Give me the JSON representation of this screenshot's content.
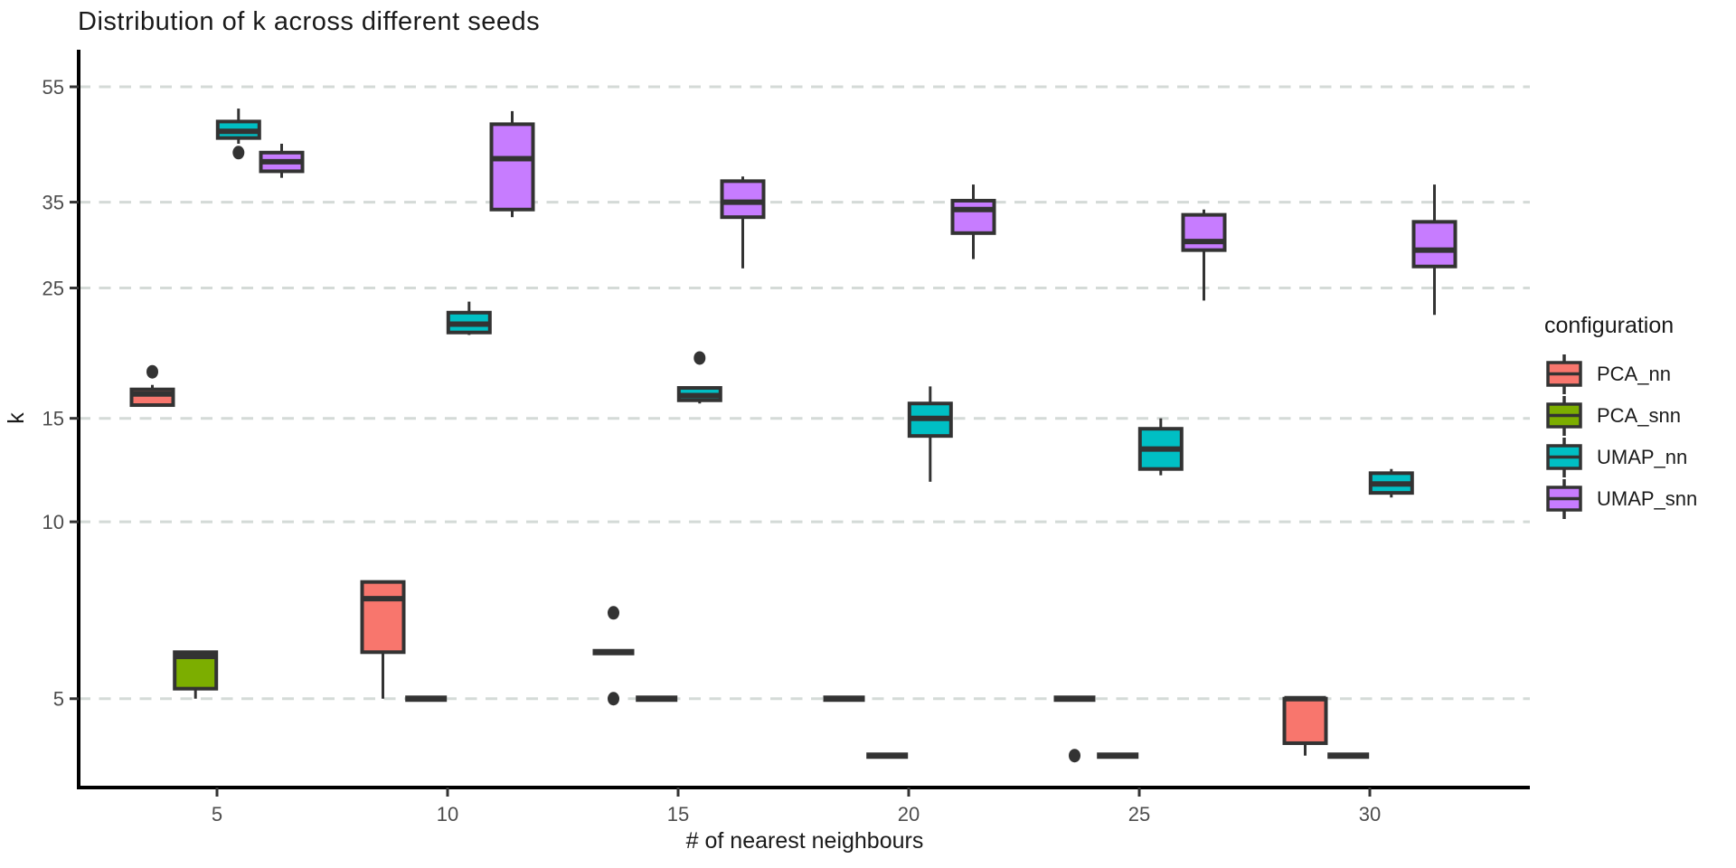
{
  "chart_data": {
    "type": "boxplot",
    "title": "Distribution of k across different seeds",
    "xlabel": "# of nearest neighbours",
    "ylabel": "k",
    "x_groups": [
      5,
      10,
      15,
      20,
      25,
      30
    ],
    "y_ticks": [
      5,
      10,
      15,
      25,
      35,
      55
    ],
    "y_scale": "log10",
    "ylim": [
      3.53,
      63.6
    ],
    "grid": "dashed-horizontal",
    "legend": {
      "title": "configuration",
      "position": "right"
    },
    "style": {
      "grid_color": "#d4dad7",
      "box_ink": "#333333",
      "axis_color": "#000000",
      "tick_label_color": "#4d4d4d"
    },
    "series": [
      {
        "name": "PCA_nn",
        "color": "#F8766D",
        "boxes": [
          {
            "x": 5,
            "low": 15.8,
            "q1": 15.8,
            "median": 16.5,
            "q3": 16.8,
            "high": 17.1,
            "outliers": [
              18
            ]
          },
          {
            "x": 10,
            "low": 5,
            "q1": 6,
            "median": 7.4,
            "q3": 7.9,
            "high": 7.9,
            "outliers": []
          },
          {
            "x": 15,
            "low": 6,
            "q1": 6,
            "median": 6,
            "q3": 6,
            "high": 6,
            "outliers": [
              7,
              5
            ]
          },
          {
            "x": 20,
            "low": 5,
            "q1": 5,
            "median": 5,
            "q3": 5,
            "high": 5,
            "outliers": []
          },
          {
            "x": 25,
            "low": 5,
            "q1": 5,
            "median": 5,
            "q3": 5,
            "high": 5,
            "outliers": [
              4
            ]
          },
          {
            "x": 30,
            "low": 4,
            "q1": 4.2,
            "median": 5,
            "q3": 5,
            "high": 5,
            "outliers": []
          }
        ]
      },
      {
        "name": "PCA_snn",
        "color": "#7CAE00",
        "boxes": [
          {
            "x": 5,
            "low": 5,
            "q1": 5.2,
            "median": 5.9,
            "q3": 6,
            "high": 6,
            "outliers": []
          },
          {
            "x": 10,
            "low": 5,
            "q1": 5,
            "median": 5,
            "q3": 5,
            "high": 5,
            "outliers": []
          },
          {
            "x": 15,
            "low": 5,
            "q1": 5,
            "median": 5,
            "q3": 5,
            "high": 5,
            "outliers": []
          },
          {
            "x": 20,
            "low": 4,
            "q1": 4,
            "median": 4,
            "q3": 4,
            "high": 4,
            "outliers": []
          },
          {
            "x": 25,
            "low": 4,
            "q1": 4,
            "median": 4,
            "q3": 4,
            "high": 4,
            "outliers": []
          },
          {
            "x": 30,
            "low": 4,
            "q1": 4,
            "median": 4,
            "q3": 4,
            "high": 4,
            "outliers": []
          }
        ]
      },
      {
        "name": "UMAP_nn",
        "color": "#00BFC4",
        "boxes": [
          {
            "x": 5,
            "low": 44,
            "q1": 45,
            "median": 46.2,
            "q3": 48,
            "high": 50.5,
            "outliers": [
              42.5
            ]
          },
          {
            "x": 10,
            "low": 20.8,
            "q1": 21,
            "median": 21.7,
            "q3": 22.7,
            "high": 23.7,
            "outliers": []
          },
          {
            "x": 15,
            "low": 15.9,
            "q1": 16.1,
            "median": 16.4,
            "q3": 16.9,
            "high": 17,
            "outliers": [
              19
            ]
          },
          {
            "x": 20,
            "low": 11.7,
            "q1": 14,
            "median": 15,
            "q3": 15.9,
            "high": 17,
            "outliers": []
          },
          {
            "x": 25,
            "low": 12,
            "q1": 12.3,
            "median": 13.3,
            "q3": 14.4,
            "high": 15,
            "outliers": []
          },
          {
            "x": 30,
            "low": 11,
            "q1": 11.2,
            "median": 11.6,
            "q3": 12.1,
            "high": 12.3,
            "outliers": []
          }
        ]
      },
      {
        "name": "UMAP_snn",
        "color": "#C77CFF",
        "boxes": [
          {
            "x": 5,
            "low": 38.5,
            "q1": 39.5,
            "median": 41,
            "q3": 42.5,
            "high": 44,
            "outliers": []
          },
          {
            "x": 10,
            "low": 33,
            "q1": 34,
            "median": 41.5,
            "q3": 47.5,
            "high": 50,
            "outliers": []
          },
          {
            "x": 15,
            "low": 27,
            "q1": 33,
            "median": 35,
            "q3": 38,
            "high": 38.7,
            "outliers": []
          },
          {
            "x": 20,
            "low": 28,
            "q1": 31,
            "median": 34,
            "q3": 35.2,
            "high": 37.5,
            "outliers": []
          },
          {
            "x": 25,
            "low": 23.8,
            "q1": 29,
            "median": 30,
            "q3": 33.3,
            "high": 34,
            "outliers": []
          },
          {
            "x": 30,
            "low": 22.5,
            "q1": 27.2,
            "median": 29,
            "q3": 32.4,
            "high": 37.5,
            "outliers": []
          }
        ]
      }
    ]
  }
}
